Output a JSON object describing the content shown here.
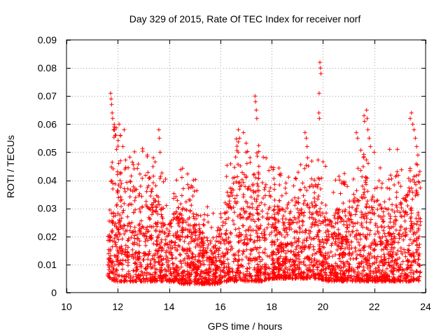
{
  "chart_data": {
    "type": "scatter",
    "title": "Day 329 of 2015, Rate Of TEC Index for receiver norf",
    "xlabel": "GPS time / hours",
    "ylabel": "ROTI / TECUs",
    "xlim": [
      10,
      24
    ],
    "ylim": [
      0,
      0.09
    ],
    "x_ticks": [
      10,
      12,
      14,
      16,
      18,
      20,
      22,
      24
    ],
    "x_tick_labels": [
      "10",
      "12",
      "14",
      "16",
      "18",
      "20",
      "22",
      "24"
    ],
    "y_ticks": [
      0,
      0.01,
      0.02,
      0.03,
      0.04,
      0.05,
      0.06,
      0.07,
      0.08,
      0.09
    ],
    "y_tick_labels": [
      "0",
      "0.01",
      "0.02",
      "0.03",
      "0.04",
      "0.05",
      "0.06",
      "0.07",
      "0.08",
      "0.09"
    ],
    "grid": true,
    "marker": "plus",
    "color": "#ff0000",
    "data_span_hours": [
      11.6,
      23.8
    ],
    "envelope": [
      {
        "x": 11.6,
        "floor": 0.006,
        "ceil": 0.028
      },
      {
        "x": 11.8,
        "floor": 0.004,
        "ceil": 0.05
      },
      {
        "x": 12.2,
        "floor": 0.004,
        "ceil": 0.042
      },
      {
        "x": 12.6,
        "floor": 0.004,
        "ceil": 0.038
      },
      {
        "x": 13.0,
        "floor": 0.004,
        "ceil": 0.04
      },
      {
        "x": 13.6,
        "floor": 0.004,
        "ceil": 0.035
      },
      {
        "x": 14.0,
        "floor": 0.004,
        "ceil": 0.026
      },
      {
        "x": 14.6,
        "floor": 0.003,
        "ceil": 0.034
      },
      {
        "x": 15.0,
        "floor": 0.003,
        "ceil": 0.03
      },
      {
        "x": 15.4,
        "floor": 0.003,
        "ceil": 0.02
      },
      {
        "x": 15.8,
        "floor": 0.003,
        "ceil": 0.018
      },
      {
        "x": 16.4,
        "floor": 0.004,
        "ceil": 0.04
      },
      {
        "x": 16.8,
        "floor": 0.004,
        "ceil": 0.045
      },
      {
        "x": 17.2,
        "floor": 0.004,
        "ceil": 0.038
      },
      {
        "x": 17.6,
        "floor": 0.004,
        "ceil": 0.043
      },
      {
        "x": 18.0,
        "floor": 0.005,
        "ceil": 0.034
      },
      {
        "x": 18.6,
        "floor": 0.005,
        "ceil": 0.032
      },
      {
        "x": 19.2,
        "floor": 0.005,
        "ceil": 0.036
      },
      {
        "x": 19.8,
        "floor": 0.005,
        "ceil": 0.04
      },
      {
        "x": 20.2,
        "floor": 0.004,
        "ceil": 0.03
      },
      {
        "x": 20.8,
        "floor": 0.004,
        "ceil": 0.03
      },
      {
        "x": 21.2,
        "floor": 0.004,
        "ceil": 0.036
      },
      {
        "x": 21.6,
        "floor": 0.004,
        "ceil": 0.04
      },
      {
        "x": 22.0,
        "floor": 0.004,
        "ceil": 0.034
      },
      {
        "x": 22.6,
        "floor": 0.004,
        "ceil": 0.03
      },
      {
        "x": 23.0,
        "floor": 0.004,
        "ceil": 0.032
      },
      {
        "x": 23.5,
        "floor": 0.004,
        "ceil": 0.042
      },
      {
        "x": 23.8,
        "floor": 0.004,
        "ceil": 0.035
      }
    ],
    "outliers": [
      {
        "x": 11.72,
        "y": 0.071
      },
      {
        "x": 11.74,
        "y": 0.069
      },
      {
        "x": 11.76,
        "y": 0.067
      },
      {
        "x": 11.78,
        "y": 0.064
      },
      {
        "x": 11.8,
        "y": 0.062
      },
      {
        "x": 11.85,
        "y": 0.058
      },
      {
        "x": 11.9,
        "y": 0.056
      },
      {
        "x": 11.95,
        "y": 0.051
      },
      {
        "x": 12.05,
        "y": 0.06
      },
      {
        "x": 12.1,
        "y": 0.056
      },
      {
        "x": 12.25,
        "y": 0.058
      },
      {
        "x": 12.2,
        "y": 0.052
      },
      {
        "x": 13.15,
        "y": 0.049
      },
      {
        "x": 13.6,
        "y": 0.058
      },
      {
        "x": 13.62,
        "y": 0.055
      },
      {
        "x": 13.65,
        "y": 0.05
      },
      {
        "x": 14.5,
        "y": 0.041
      },
      {
        "x": 16.7,
        "y": 0.058
      },
      {
        "x": 16.75,
        "y": 0.055
      },
      {
        "x": 16.9,
        "y": 0.057
      },
      {
        "x": 17.0,
        "y": 0.05
      },
      {
        "x": 17.35,
        "y": 0.07
      },
      {
        "x": 17.37,
        "y": 0.068
      },
      {
        "x": 17.4,
        "y": 0.065
      },
      {
        "x": 17.42,
        "y": 0.062
      },
      {
        "x": 17.5,
        "y": 0.045
      },
      {
        "x": 18.3,
        "y": 0.042
      },
      {
        "x": 19.3,
        "y": 0.057
      },
      {
        "x": 19.35,
        "y": 0.055
      },
      {
        "x": 19.38,
        "y": 0.052
      },
      {
        "x": 19.4,
        "y": 0.048
      },
      {
        "x": 19.88,
        "y": 0.082
      },
      {
        "x": 19.9,
        "y": 0.08
      },
      {
        "x": 19.92,
        "y": 0.078
      },
      {
        "x": 19.85,
        "y": 0.071
      },
      {
        "x": 19.84,
        "y": 0.064
      },
      {
        "x": 19.86,
        "y": 0.062
      },
      {
        "x": 20.1,
        "y": 0.045
      },
      {
        "x": 21.3,
        "y": 0.057
      },
      {
        "x": 21.35,
        "y": 0.055
      },
      {
        "x": 21.6,
        "y": 0.063
      },
      {
        "x": 21.62,
        "y": 0.061
      },
      {
        "x": 21.7,
        "y": 0.065
      },
      {
        "x": 21.72,
        "y": 0.062
      },
      {
        "x": 21.75,
        "y": 0.058
      },
      {
        "x": 21.8,
        "y": 0.055
      },
      {
        "x": 21.85,
        "y": 0.052
      },
      {
        "x": 22.0,
        "y": 0.05
      },
      {
        "x": 22.6,
        "y": 0.051
      },
      {
        "x": 22.9,
        "y": 0.051
      },
      {
        "x": 23.4,
        "y": 0.062
      },
      {
        "x": 23.45,
        "y": 0.064
      },
      {
        "x": 23.5,
        "y": 0.06
      },
      {
        "x": 23.55,
        "y": 0.058
      },
      {
        "x": 23.6,
        "y": 0.055
      },
      {
        "x": 23.65,
        "y": 0.052
      },
      {
        "x": 23.7,
        "y": 0.049
      }
    ],
    "point_count": 3200,
    "seed": 329
  }
}
